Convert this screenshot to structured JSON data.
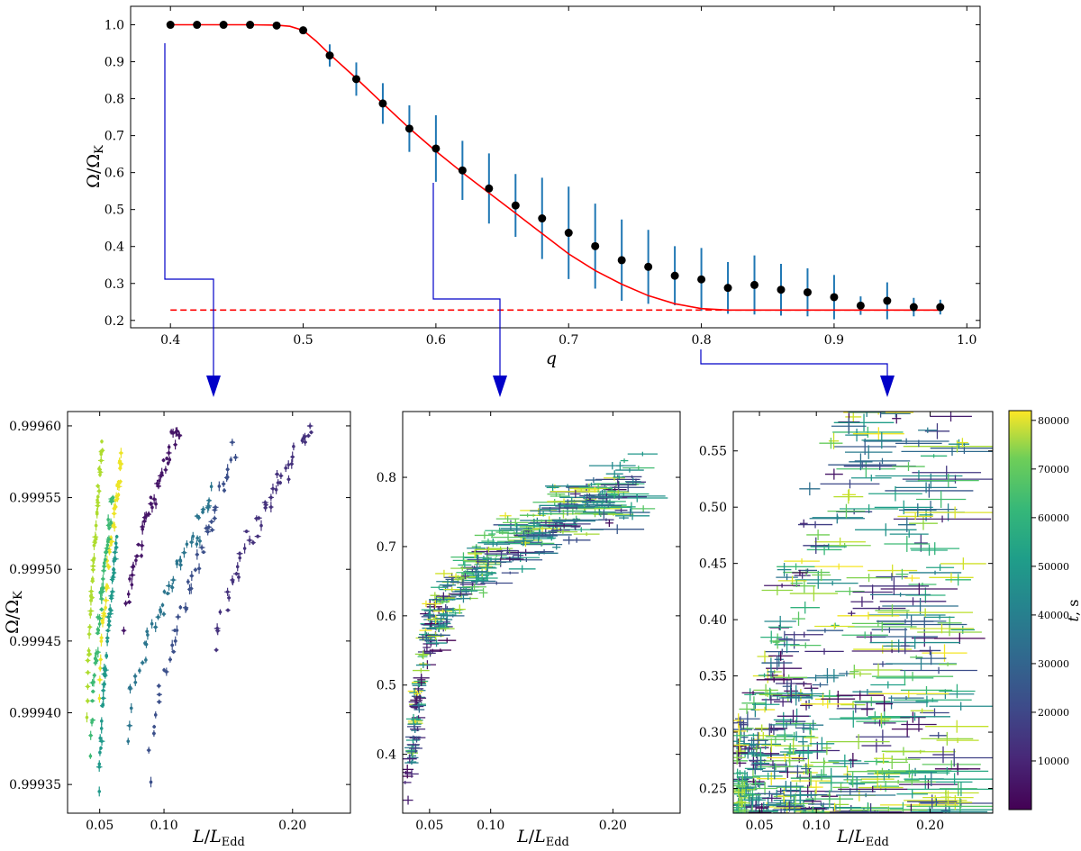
{
  "colors": {
    "fit_curve": "#ff0000",
    "baseline": "#ff0000",
    "data_points": "#000000",
    "error_bars": "#1f77b4",
    "arrows": "#0000c8",
    "colormap": [
      "#440154",
      "#3b528b",
      "#21918c",
      "#5ec962",
      "#fde725"
    ]
  },
  "chart_data": [
    {
      "id": "top",
      "type": "scatter",
      "xlabel": "q",
      "ylabel": "Ω/Ω_K",
      "xlim": [
        0.37,
        1.01
      ],
      "ylim": [
        0.18,
        1.05
      ],
      "xticks": [
        "0.4",
        "0.5",
        "0.6",
        "0.7",
        "0.8",
        "0.9",
        "1.0"
      ],
      "yticks": [
        "0.2",
        "0.3",
        "0.4",
        "0.5",
        "0.6",
        "0.7",
        "0.8",
        "0.9",
        "1.0"
      ],
      "baseline": 0.228,
      "curve": {
        "x": [
          0.4,
          0.42,
          0.44,
          0.46,
          0.48,
          0.49,
          0.5,
          0.51,
          0.52,
          0.54,
          0.56,
          0.58,
          0.6,
          0.62,
          0.64,
          0.66,
          0.68,
          0.7,
          0.72,
          0.74,
          0.76,
          0.78,
          0.8,
          0.82,
          0.84,
          0.86,
          0.88,
          0.9,
          0.92,
          0.94,
          0.96,
          0.98
        ],
        "y": [
          1.0,
          1.0,
          1.0,
          1.0,
          0.999,
          0.996,
          0.985,
          0.955,
          0.92,
          0.855,
          0.787,
          0.72,
          0.658,
          0.6,
          0.545,
          0.49,
          0.435,
          0.38,
          0.335,
          0.298,
          0.267,
          0.245,
          0.232,
          0.228,
          0.228,
          0.228,
          0.228,
          0.228,
          0.228,
          0.228,
          0.228,
          0.228
        ]
      },
      "points": {
        "x": [
          0.4,
          0.42,
          0.44,
          0.46,
          0.48,
          0.5,
          0.52,
          0.54,
          0.56,
          0.58,
          0.6,
          0.62,
          0.64,
          0.66,
          0.68,
          0.7,
          0.72,
          0.74,
          0.76,
          0.78,
          0.8,
          0.82,
          0.84,
          0.86,
          0.88,
          0.9,
          0.92,
          0.94,
          0.96,
          0.98
        ],
        "y": [
          1.0,
          1.0,
          1.0,
          1.0,
          0.998,
          0.985,
          0.917,
          0.853,
          0.787,
          0.719,
          0.665,
          0.606,
          0.557,
          0.511,
          0.476,
          0.437,
          0.401,
          0.363,
          0.345,
          0.321,
          0.311,
          0.288,
          0.296,
          0.283,
          0.276,
          0.263,
          0.24,
          0.253,
          0.236,
          0.236
        ],
        "yerr": [
          0.0,
          0.0,
          0.0,
          0.0,
          0.0,
          0.0,
          0.03,
          0.045,
          0.055,
          0.063,
          0.09,
          0.08,
          0.095,
          0.085,
          0.11,
          0.125,
          0.115,
          0.11,
          0.1,
          0.08,
          0.085,
          0.07,
          0.08,
          0.07,
          0.065,
          0.06,
          0.025,
          0.05,
          0.025,
          0.02
        ]
      }
    },
    {
      "id": "panel1",
      "type": "scatter",
      "xlabel": "L/L_Edd",
      "ylabel": "Ω/Ω_K",
      "xlim": [
        0.025,
        0.245
      ],
      "ylim": [
        0.99933,
        0.99961
      ],
      "xticks": [
        "0.05",
        "0.10",
        "0.20"
      ],
      "yticks": [
        "0.99935",
        "0.99940",
        "0.99945",
        "0.99950",
        "0.99955",
        "0.99960"
      ],
      "sequences": [
        {
          "t": 72000,
          "x0": 0.04,
          "x1": 0.052,
          "y0": 0.99939,
          "y1": 0.99959
        },
        {
          "t": 80000,
          "x0": 0.05,
          "x1": 0.067,
          "y0": 0.99941,
          "y1": 0.99958
        },
        {
          "t": 56000,
          "x0": 0.043,
          "x1": 0.06,
          "y0": 0.99937,
          "y1": 0.99955
        },
        {
          "t": 44000,
          "x0": 0.049,
          "x1": 0.063,
          "y0": 0.99933,
          "y1": 0.99952
        },
        {
          "t": 5000,
          "x0": 0.07,
          "x1": 0.112,
          "y0": 0.99946,
          "y1": 0.9996
        },
        {
          "t": 32000,
          "x0": 0.07,
          "x1": 0.138,
          "y0": 0.99938,
          "y1": 0.99955
        },
        {
          "t": 20000,
          "x0": 0.088,
          "x1": 0.155,
          "y0": 0.99935,
          "y1": 0.99958
        },
        {
          "t": 12000,
          "x0": 0.14,
          "x1": 0.215,
          "y0": 0.99944,
          "y1": 0.9996
        }
      ]
    },
    {
      "id": "panel2",
      "type": "scatter",
      "xlabel": "L/L_Edd",
      "ylabel": "",
      "xlim": [
        0.028,
        0.255
      ],
      "ylim": [
        0.315,
        0.895
      ],
      "xticks": [
        "0.05",
        "0.10",
        "0.20"
      ],
      "yticks": [
        "0.4",
        "0.5",
        "0.6",
        "0.7",
        "0.8"
      ]
    },
    {
      "id": "panel3",
      "type": "scatter",
      "xlabel": "L/L_Edd",
      "ylabel": "",
      "xlim": [
        0.027,
        0.255
      ],
      "ylim": [
        0.228,
        0.585
      ],
      "xticks": [
        "0.05",
        "0.10",
        "0.20"
      ],
      "yticks": [
        "0.25",
        "0.30",
        "0.35",
        "0.40",
        "0.45",
        "0.50",
        "0.55"
      ]
    },
    {
      "id": "colorbar",
      "type": "colorbar",
      "label": "t, s",
      "range": [
        0,
        82000
      ],
      "ticks": [
        "10000",
        "20000",
        "30000",
        "40000",
        "50000",
        "60000",
        "70000",
        "80000"
      ]
    }
  ]
}
